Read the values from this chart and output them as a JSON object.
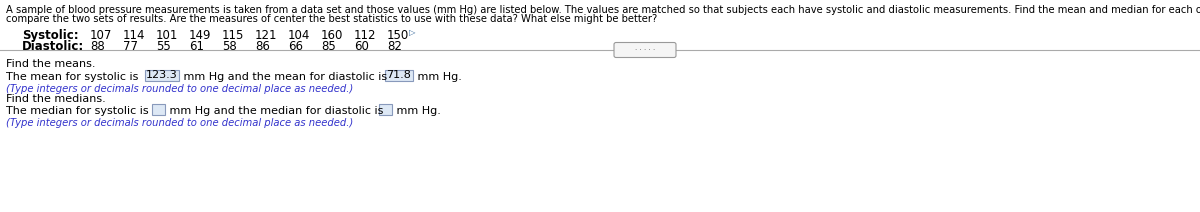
{
  "header_line1": "A sample of blood pressure measurements is taken from a data set and those values (mm Hg) are listed below. The values are matched so that subjects each have systolic and diastolic measurements. Find the mean and median for each of the two samples and then",
  "header_line2": "compare the two sets of results. Are the measures of center the best statistics to use with these data? What else might be better?",
  "systolic_label": "Systolic:",
  "systolic_values": "107    114    101    149    115    121    104    160    112    150",
  "diastolic_label": "Diastolic:",
  "diastolic_values": "88    77    55    61    58    86    66    85    60    82",
  "find_means_text": "Find the means.",
  "mean_prefix": "The mean for systolic is ",
  "mean_systolic": "123.3",
  "mean_middle": " mm Hg and the mean for diastolic is ",
  "mean_diastolic": "71.8",
  "mean_suffix": " mm Hg.",
  "type_note": "(Type integers or decimals rounded to one decimal place as needed.)",
  "find_medians_text": "Find the medians.",
  "median_prefix": "The median for systolic is",
  "median_middle": " mm Hg and the median for diastolic is",
  "median_suffix": " mm Hg.",
  "bg_color": "#ffffff",
  "text_color": "#000000",
  "blue_color": "#3333cc",
  "header_fontsize": 7.2,
  "body_fontsize": 8.0,
  "small_fontsize": 7.2,
  "label_fontsize": 8.5
}
